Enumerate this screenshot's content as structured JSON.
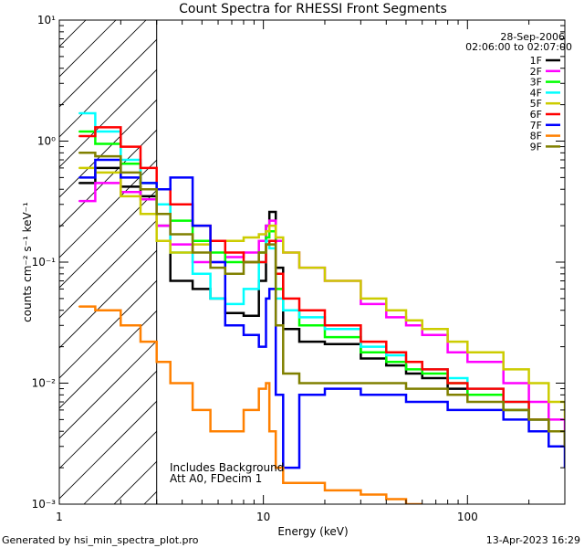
{
  "chart_data": {
    "type": "line",
    "title": "Count Spectra for RHESSI Front Segments",
    "date": "28-Sep-2006",
    "time_range": "02:06:00 to 02:07:00",
    "xlabel": "Energy (keV)",
    "ylabel": "counts cm⁻² s⁻¹ keV⁻¹",
    "xscale": "log",
    "yscale": "log",
    "xlim": [
      1,
      300
    ],
    "ylim": [
      0.001,
      10
    ],
    "x_ticks": [
      {
        "value": 1,
        "label": "1"
      },
      {
        "value": 10,
        "label": "10"
      },
      {
        "value": 100,
        "label": "100"
      }
    ],
    "y_ticks": [
      {
        "value": 10,
        "label": "10¹"
      },
      {
        "value": 1,
        "label": "10⁰"
      },
      {
        "value": 0.1,
        "label": "10⁻¹"
      },
      {
        "value": 0.01,
        "label": "10⁻²"
      },
      {
        "value": 0.001,
        "label": "10⁻³"
      }
    ],
    "hatched_region": {
      "xmin": 1,
      "xmax": 3
    },
    "annotations": [
      "Includes Background",
      "Att A0, FDecim 1"
    ],
    "legend_position": "top-right",
    "series": [
      {
        "name": "1F",
        "color": "#000000",
        "x": [
          1.25,
          1.5,
          2,
          2.5,
          3,
          3.5,
          4.5,
          5.5,
          6.5,
          8,
          9.5,
          10.3,
          10.7,
          11.5,
          12.5,
          15,
          20,
          30,
          40,
          50,
          60,
          80,
          100,
          150,
          200,
          250,
          300
        ],
        "y": [
          0.45,
          0.6,
          0.42,
          0.35,
          0.2,
          0.07,
          0.06,
          0.05,
          0.038,
          0.036,
          0.07,
          0.2,
          0.26,
          0.09,
          0.028,
          0.022,
          0.021,
          0.016,
          0.014,
          0.012,
          0.011,
          0.009,
          0.008,
          0.006,
          0.005,
          0.004,
          0.003
        ]
      },
      {
        "name": "2F",
        "color": "#ff00ff",
        "x": [
          1.25,
          1.5,
          2,
          2.5,
          3,
          3.5,
          4.5,
          5.5,
          6.5,
          8,
          9.5,
          10.3,
          10.7,
          11.5,
          12.5,
          15,
          20,
          30,
          40,
          50,
          60,
          80,
          100,
          150,
          200,
          250,
          300
        ],
        "y": [
          0.32,
          0.45,
          0.38,
          0.33,
          0.2,
          0.14,
          0.1,
          0.1,
          0.11,
          0.12,
          0.15,
          0.2,
          0.22,
          0.15,
          0.12,
          0.09,
          0.07,
          0.045,
          0.035,
          0.03,
          0.025,
          0.018,
          0.015,
          0.01,
          0.007,
          0.005,
          0.004
        ]
      },
      {
        "name": "3F",
        "color": "#00ff00",
        "x": [
          1.25,
          1.5,
          2,
          2.5,
          3,
          3.5,
          4.5,
          5.5,
          6.5,
          8,
          9.5,
          10.3,
          10.7,
          11.5,
          12.5,
          15,
          20,
          30,
          40,
          50,
          60,
          80,
          100,
          150,
          200,
          250,
          300
        ],
        "y": [
          1.2,
          0.95,
          0.65,
          0.45,
          0.3,
          0.22,
          0.15,
          0.12,
          0.1,
          0.1,
          0.12,
          0.16,
          0.18,
          0.06,
          0.04,
          0.03,
          0.024,
          0.018,
          0.015,
          0.013,
          0.012,
          0.01,
          0.008,
          0.006,
          0.005,
          0.004,
          0.003
        ]
      },
      {
        "name": "4F",
        "color": "#00ffff",
        "x": [
          1.25,
          1.5,
          2,
          2.5,
          3,
          3.5,
          4.5,
          5.5,
          6.5,
          8,
          9.5,
          10.3,
          10.7,
          11.5,
          12.5,
          15,
          20,
          30,
          40,
          50,
          60,
          80,
          100,
          150,
          200,
          250,
          300
        ],
        "y": [
          1.7,
          1.2,
          0.7,
          0.45,
          0.3,
          0.12,
          0.08,
          0.05,
          0.045,
          0.06,
          0.1,
          0.15,
          0.13,
          0.05,
          0.04,
          0.035,
          0.028,
          0.02,
          0.017,
          0.015,
          0.013,
          0.011,
          0.009,
          0.007,
          0.005,
          0.004,
          0.003
        ]
      },
      {
        "name": "5F",
        "color": "#cccc00",
        "x": [
          1.25,
          1.5,
          2,
          2.5,
          3,
          3.5,
          4.5,
          5.5,
          6.5,
          8,
          9.5,
          10.3,
          10.7,
          11.5,
          12.5,
          15,
          20,
          30,
          40,
          50,
          60,
          80,
          100,
          150,
          200,
          250,
          300
        ],
        "y": [
          0.6,
          0.55,
          0.35,
          0.25,
          0.15,
          0.12,
          0.14,
          0.15,
          0.15,
          0.16,
          0.17,
          0.18,
          0.2,
          0.16,
          0.12,
          0.09,
          0.07,
          0.05,
          0.04,
          0.033,
          0.028,
          0.022,
          0.018,
          0.013,
          0.01,
          0.007,
          0.005
        ]
      },
      {
        "name": "6F",
        "color": "#ff0000",
        "x": [
          1.25,
          1.5,
          2,
          2.5,
          3,
          3.5,
          4.5,
          5.5,
          6.5,
          8,
          9.5,
          10.3,
          10.7,
          11.5,
          12.5,
          15,
          20,
          30,
          40,
          50,
          60,
          80,
          100,
          150,
          200,
          250,
          300
        ],
        "y": [
          1.1,
          1.3,
          0.9,
          0.6,
          0.4,
          0.3,
          0.2,
          0.15,
          0.12,
          0.1,
          0.1,
          0.14,
          0.15,
          0.08,
          0.05,
          0.04,
          0.03,
          0.022,
          0.018,
          0.015,
          0.013,
          0.01,
          0.009,
          0.007,
          0.005,
          0.004,
          0.003
        ]
      },
      {
        "name": "7F",
        "color": "#0000ff",
        "x": [
          1.25,
          1.5,
          2,
          2.5,
          3,
          3.5,
          4.5,
          5.5,
          6.5,
          8,
          9.5,
          10.3,
          10.7,
          11.5,
          12.5,
          15,
          20,
          30,
          40,
          50,
          60,
          80,
          100,
          150,
          200,
          250,
          300
        ],
        "y": [
          0.5,
          0.7,
          0.5,
          0.45,
          0.4,
          0.5,
          0.2,
          0.1,
          0.03,
          0.025,
          0.02,
          0.05,
          0.06,
          0.008,
          0.002,
          0.008,
          0.009,
          0.008,
          0.008,
          0.007,
          0.007,
          0.006,
          0.006,
          0.005,
          0.004,
          0.003,
          0.002
        ]
      },
      {
        "name": "8F",
        "color": "#ff8000",
        "x": [
          1.25,
          1.5,
          2,
          2.5,
          3,
          3.5,
          4.5,
          5.5,
          6.5,
          8,
          9.5,
          10.3,
          10.7,
          11.5,
          12.5,
          15,
          20,
          30,
          40,
          50,
          60
        ],
        "y": [
          0.043,
          0.04,
          0.03,
          0.022,
          0.015,
          0.01,
          0.006,
          0.004,
          0.004,
          0.006,
          0.009,
          0.01,
          0.004,
          0.002,
          0.0015,
          0.0015,
          0.0013,
          0.0012,
          0.0011,
          0.001,
          0.001
        ]
      },
      {
        "name": "9F",
        "color": "#808000",
        "x": [
          1.25,
          1.5,
          2,
          2.5,
          3,
          3.5,
          4.5,
          5.5,
          6.5,
          8,
          9.5,
          10.3,
          10.7,
          11.5,
          12.5,
          15,
          20,
          30,
          40,
          50,
          60,
          80,
          100,
          150,
          200,
          250,
          300
        ],
        "y": [
          0.8,
          0.75,
          0.55,
          0.4,
          0.25,
          0.17,
          0.12,
          0.09,
          0.08,
          0.1,
          0.12,
          0.14,
          0.14,
          0.03,
          0.012,
          0.01,
          0.01,
          0.01,
          0.01,
          0.009,
          0.009,
          0.008,
          0.007,
          0.006,
          0.005,
          0.004,
          0.003
        ]
      }
    ]
  },
  "footer": {
    "generated_by": "Generated by hsi_min_spectra_plot.pro",
    "timestamp": "13-Apr-2023 16:29"
  }
}
